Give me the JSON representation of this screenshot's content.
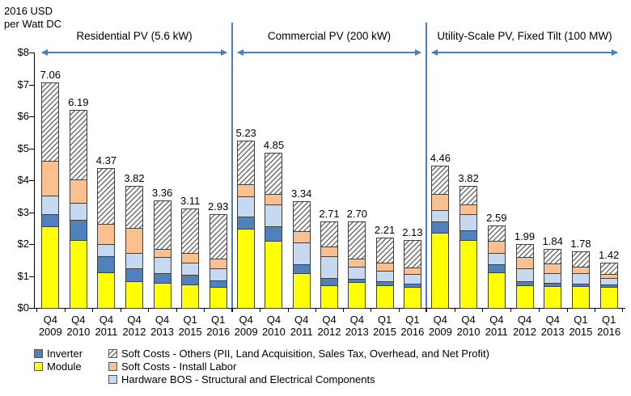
{
  "axis_title": {
    "line1": "2016 USD",
    "line2": "per Watt DC"
  },
  "accent_color": "#4A7EBB",
  "chart_data": {
    "type": "bar",
    "stacked": true,
    "title": "",
    "ylabel": "2016 USD per Watt DC",
    "ylim": [
      0,
      8
    ],
    "ytick_step": 1,
    "ytick_prefix": "$",
    "grid": false,
    "categories": [
      "Q4 2009",
      "Q4 2010",
      "Q4 2011",
      "Q4 2012",
      "Q4 2013",
      "Q1 2015",
      "Q1 2016"
    ],
    "stack_order_bottom_to_top": [
      "module",
      "inverter",
      "hardware_bos",
      "install_labor",
      "soft_other"
    ],
    "series_meta": {
      "module": {
        "label": "Module",
        "color": "#FFFF00",
        "pattern": "solid"
      },
      "inverter": {
        "label": "Inverter",
        "color": "#4F81BD",
        "pattern": "solid"
      },
      "hardware_bos": {
        "label": "Hardware BOS - Structural and Electrical Components",
        "color": "#C6D9F1",
        "pattern": "solid"
      },
      "install_labor": {
        "label": "Soft Costs - Install Labor",
        "color": "#FAC090",
        "pattern": "solid"
      },
      "soft_other": {
        "label": "Soft Costs - Others (PII, Land Acquisition, Sales Tax, Overhead, and Net Profit)",
        "color": "#FFFFFF",
        "pattern": "diagonal-hatch"
      }
    },
    "groups": [
      {
        "title": "Residential PV (5.6 kW)",
        "totals": [
          7.06,
          6.19,
          4.37,
          3.82,
          3.36,
          3.11,
          2.93
        ],
        "series": {
          "module": [
            2.56,
            2.12,
            1.12,
            0.83,
            0.78,
            0.74,
            0.66
          ],
          "inverter": [
            0.38,
            0.65,
            0.51,
            0.42,
            0.3,
            0.3,
            0.21
          ],
          "hardware_bos": [
            0.59,
            0.53,
            0.38,
            0.48,
            0.51,
            0.38,
            0.38
          ],
          "install_labor": [
            1.09,
            0.73,
            0.63,
            0.78,
            0.27,
            0.29,
            0.29
          ],
          "soft_other": [
            2.44,
            2.16,
            1.73,
            1.31,
            1.5,
            1.4,
            1.39
          ]
        }
      },
      {
        "title": "Commercial PV (200 kW)",
        "totals": [
          5.23,
          4.85,
          3.34,
          2.71,
          2.7,
          2.21,
          2.13
        ],
        "series": {
          "module": [
            2.47,
            2.11,
            1.08,
            0.7,
            0.8,
            0.72,
            0.66
          ],
          "inverter": [
            0.38,
            0.45,
            0.29,
            0.23,
            0.11,
            0.11,
            0.1
          ],
          "hardware_bos": [
            0.64,
            0.67,
            0.68,
            0.7,
            0.38,
            0.33,
            0.3
          ],
          "install_labor": [
            0.38,
            0.34,
            0.36,
            0.29,
            0.25,
            0.26,
            0.21
          ],
          "soft_other": [
            1.36,
            1.28,
            0.93,
            0.79,
            1.16,
            0.79,
            0.86
          ]
        }
      },
      {
        "title": "Utility-Scale PV, Fixed Tilt (100 MW)",
        "totals": [
          4.46,
          3.82,
          2.59,
          1.99,
          1.84,
          1.78,
          1.42
        ],
        "series": {
          "module": [
            2.35,
            2.13,
            1.12,
            0.7,
            0.68,
            0.68,
            0.67
          ],
          "inverter": [
            0.37,
            0.3,
            0.25,
            0.14,
            0.1,
            0.09,
            0.07
          ],
          "hardware_bos": [
            0.34,
            0.51,
            0.34,
            0.41,
            0.32,
            0.31,
            0.19
          ],
          "install_labor": [
            0.51,
            0.29,
            0.4,
            0.35,
            0.3,
            0.21,
            0.13
          ],
          "soft_other": [
            0.89,
            0.59,
            0.48,
            0.39,
            0.44,
            0.49,
            0.36
          ]
        }
      }
    ]
  },
  "legend": {
    "columns": [
      {
        "items": [
          {
            "key": "inverter",
            "label": "Inverter"
          },
          {
            "key": "module",
            "label": "Module"
          }
        ]
      },
      {
        "items": [
          {
            "key": "soft_other",
            "label": "Soft Costs - Others (PII, Land Acquisition, Sales Tax, Overhead, and Net Profit)"
          },
          {
            "key": "install_labor",
            "label": "Soft Costs - Install Labor"
          },
          {
            "key": "hardware_bos",
            "label": "Hardware BOS - Structural and Electrical Components"
          }
        ]
      }
    ]
  }
}
